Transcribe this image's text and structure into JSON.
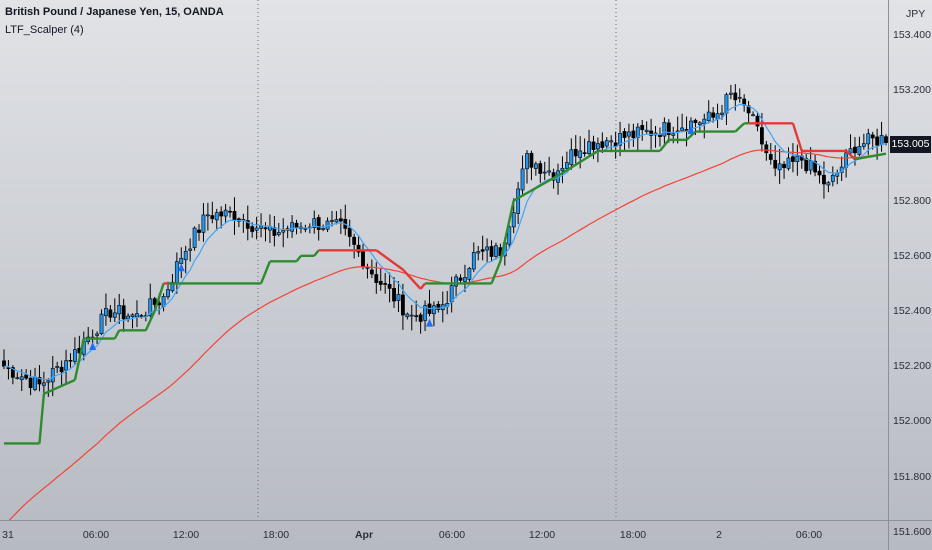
{
  "header": {
    "title": "British Pound / Japanese Yen, 15, OANDA",
    "indicator": "LTF_Scalper (4)"
  },
  "price_axis": {
    "currency": "JPY",
    "ticks": [
      "153.400",
      "153.200",
      "153.000",
      "152.800",
      "152.600",
      "152.400",
      "152.200",
      "152.000",
      "151.800",
      "151.600"
    ],
    "last_price": "153.005"
  },
  "time_axis": {
    "ticks": [
      {
        "label": "31",
        "bold": false
      },
      {
        "label": "06:00",
        "bold": false
      },
      {
        "label": "12:00",
        "bold": false
      },
      {
        "label": "18:00",
        "bold": false
      },
      {
        "label": "Apr",
        "bold": true
      },
      {
        "label": "06:00",
        "bold": false
      },
      {
        "label": "12:00",
        "bold": false
      },
      {
        "label": "18:00",
        "bold": false
      },
      {
        "label": "2",
        "bold": false
      },
      {
        "label": "06:00",
        "bold": false
      }
    ]
  },
  "colors": {
    "up_candle": "#2196f3",
    "down_candle": "#000000",
    "ema_fast": "#42a5f5",
    "ema_slow": "#f44336",
    "trail_bull": "#2e8b2e",
    "trail_bear": "#e53935",
    "signal": "#1e6ff0"
  },
  "chart_data": {
    "type": "candlestick",
    "ylim": [
      151.5,
      153.5
    ],
    "close_anchors": [
      [
        0,
        152.2
      ],
      [
        8,
        152.13
      ],
      [
        16,
        152.25
      ],
      [
        24,
        152.4
      ],
      [
        30,
        152.38
      ],
      [
        36,
        152.45
      ],
      [
        40,
        152.6
      ],
      [
        46,
        152.75
      ],
      [
        52,
        152.75
      ],
      [
        60,
        152.68
      ],
      [
        70,
        152.72
      ],
      [
        76,
        152.7
      ],
      [
        84,
        152.52
      ],
      [
        92,
        152.38
      ],
      [
        98,
        152.4
      ],
      [
        106,
        152.6
      ],
      [
        112,
        152.62
      ],
      [
        118,
        152.95
      ],
      [
        124,
        152.9
      ],
      [
        130,
        153.0
      ],
      [
        146,
        153.05
      ],
      [
        160,
        153.1
      ],
      [
        164,
        153.18
      ],
      [
        168,
        153.12
      ],
      [
        174,
        152.9
      ],
      [
        180,
        152.95
      ],
      [
        186,
        152.85
      ],
      [
        192,
        153.0
      ],
      [
        199,
        153.03
      ]
    ],
    "trail_stop": [
      [
        0,
        151.92,
        "bull"
      ],
      [
        8,
        151.92,
        "bull"
      ],
      [
        9,
        152.1,
        "bull"
      ],
      [
        16,
        152.15,
        "bull"
      ],
      [
        18,
        152.3,
        "bull"
      ],
      [
        25,
        152.3,
        "bull"
      ],
      [
        26,
        152.33,
        "bull"
      ],
      [
        32,
        152.33,
        "bull"
      ],
      [
        34,
        152.4,
        "bull"
      ],
      [
        36,
        152.5,
        "bear"
      ],
      [
        37,
        152.5,
        "bull"
      ],
      [
        58,
        152.5,
        "bull"
      ],
      [
        60,
        152.58,
        "bull"
      ],
      [
        66,
        152.58,
        "bull"
      ],
      [
        67,
        152.6,
        "bull"
      ],
      [
        70,
        152.6,
        "bull"
      ],
      [
        71,
        152.62,
        "bear"
      ],
      [
        84,
        152.62,
        "bear"
      ],
      [
        90,
        152.55,
        "bear"
      ],
      [
        94,
        152.48,
        "bear"
      ],
      [
        95,
        152.5,
        "bull"
      ],
      [
        110,
        152.5,
        "bull"
      ],
      [
        112,
        152.58,
        "bull"
      ],
      [
        115,
        152.8,
        "bull"
      ],
      [
        126,
        152.9,
        "bull"
      ],
      [
        134,
        152.98,
        "bull"
      ],
      [
        148,
        152.98,
        "bull"
      ],
      [
        150,
        153.02,
        "bull"
      ],
      [
        154,
        153.02,
        "bull"
      ],
      [
        156,
        153.05,
        "bull"
      ],
      [
        165,
        153.05,
        "bull"
      ],
      [
        167,
        153.08,
        "bull"
      ],
      [
        168,
        153.08,
        "bear"
      ],
      [
        178,
        153.08,
        "bear"
      ],
      [
        180,
        152.98,
        "bear"
      ],
      [
        190,
        152.98,
        "bear"
      ],
      [
        192,
        152.95,
        "bull"
      ],
      [
        199,
        152.97,
        "bull"
      ]
    ],
    "signals": [
      20,
      40,
      96,
      155
    ]
  }
}
